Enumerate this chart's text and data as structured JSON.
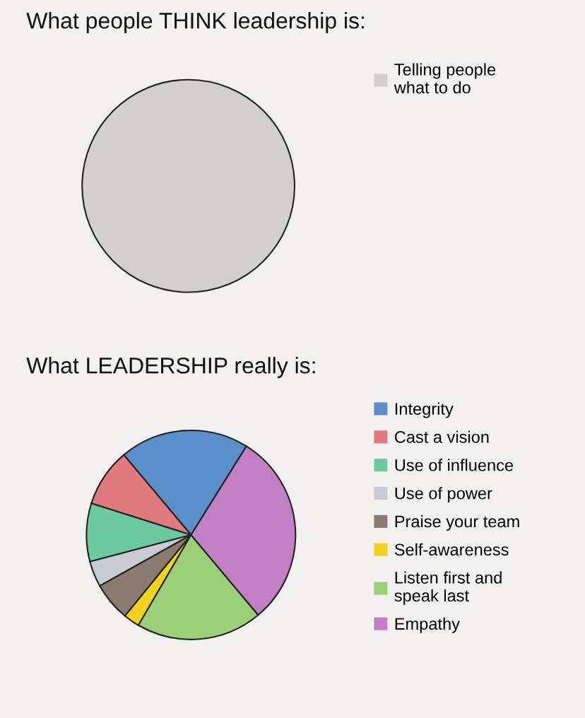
{
  "chart_data": [
    {
      "type": "pie",
      "title": "What people THINK leadership is:",
      "categories": [
        "Telling people\nwhat to do"
      ],
      "values": [
        100
      ],
      "colors": [
        "#d2d0cc"
      ],
      "legend": "right"
    },
    {
      "type": "pie",
      "title": "What LEADERSHIP really is:",
      "categories": [
        "Integrity",
        "Cast a vision",
        "Use of influence",
        "Use of power",
        "Praise your team",
        "Self-awareness",
        "Listen first and\nspeak last",
        "Empathy"
      ],
      "values": [
        20,
        9,
        9,
        4,
        6,
        2.5,
        19.5,
        30
      ],
      "colors": [
        "#5b8fc9",
        "#e07a7f",
        "#6cc9a0",
        "#c8cbd3",
        "#8a7a70",
        "#f1d319",
        "#9bcf7a",
        "#c27fc4"
      ],
      "legend": "right"
    }
  ]
}
